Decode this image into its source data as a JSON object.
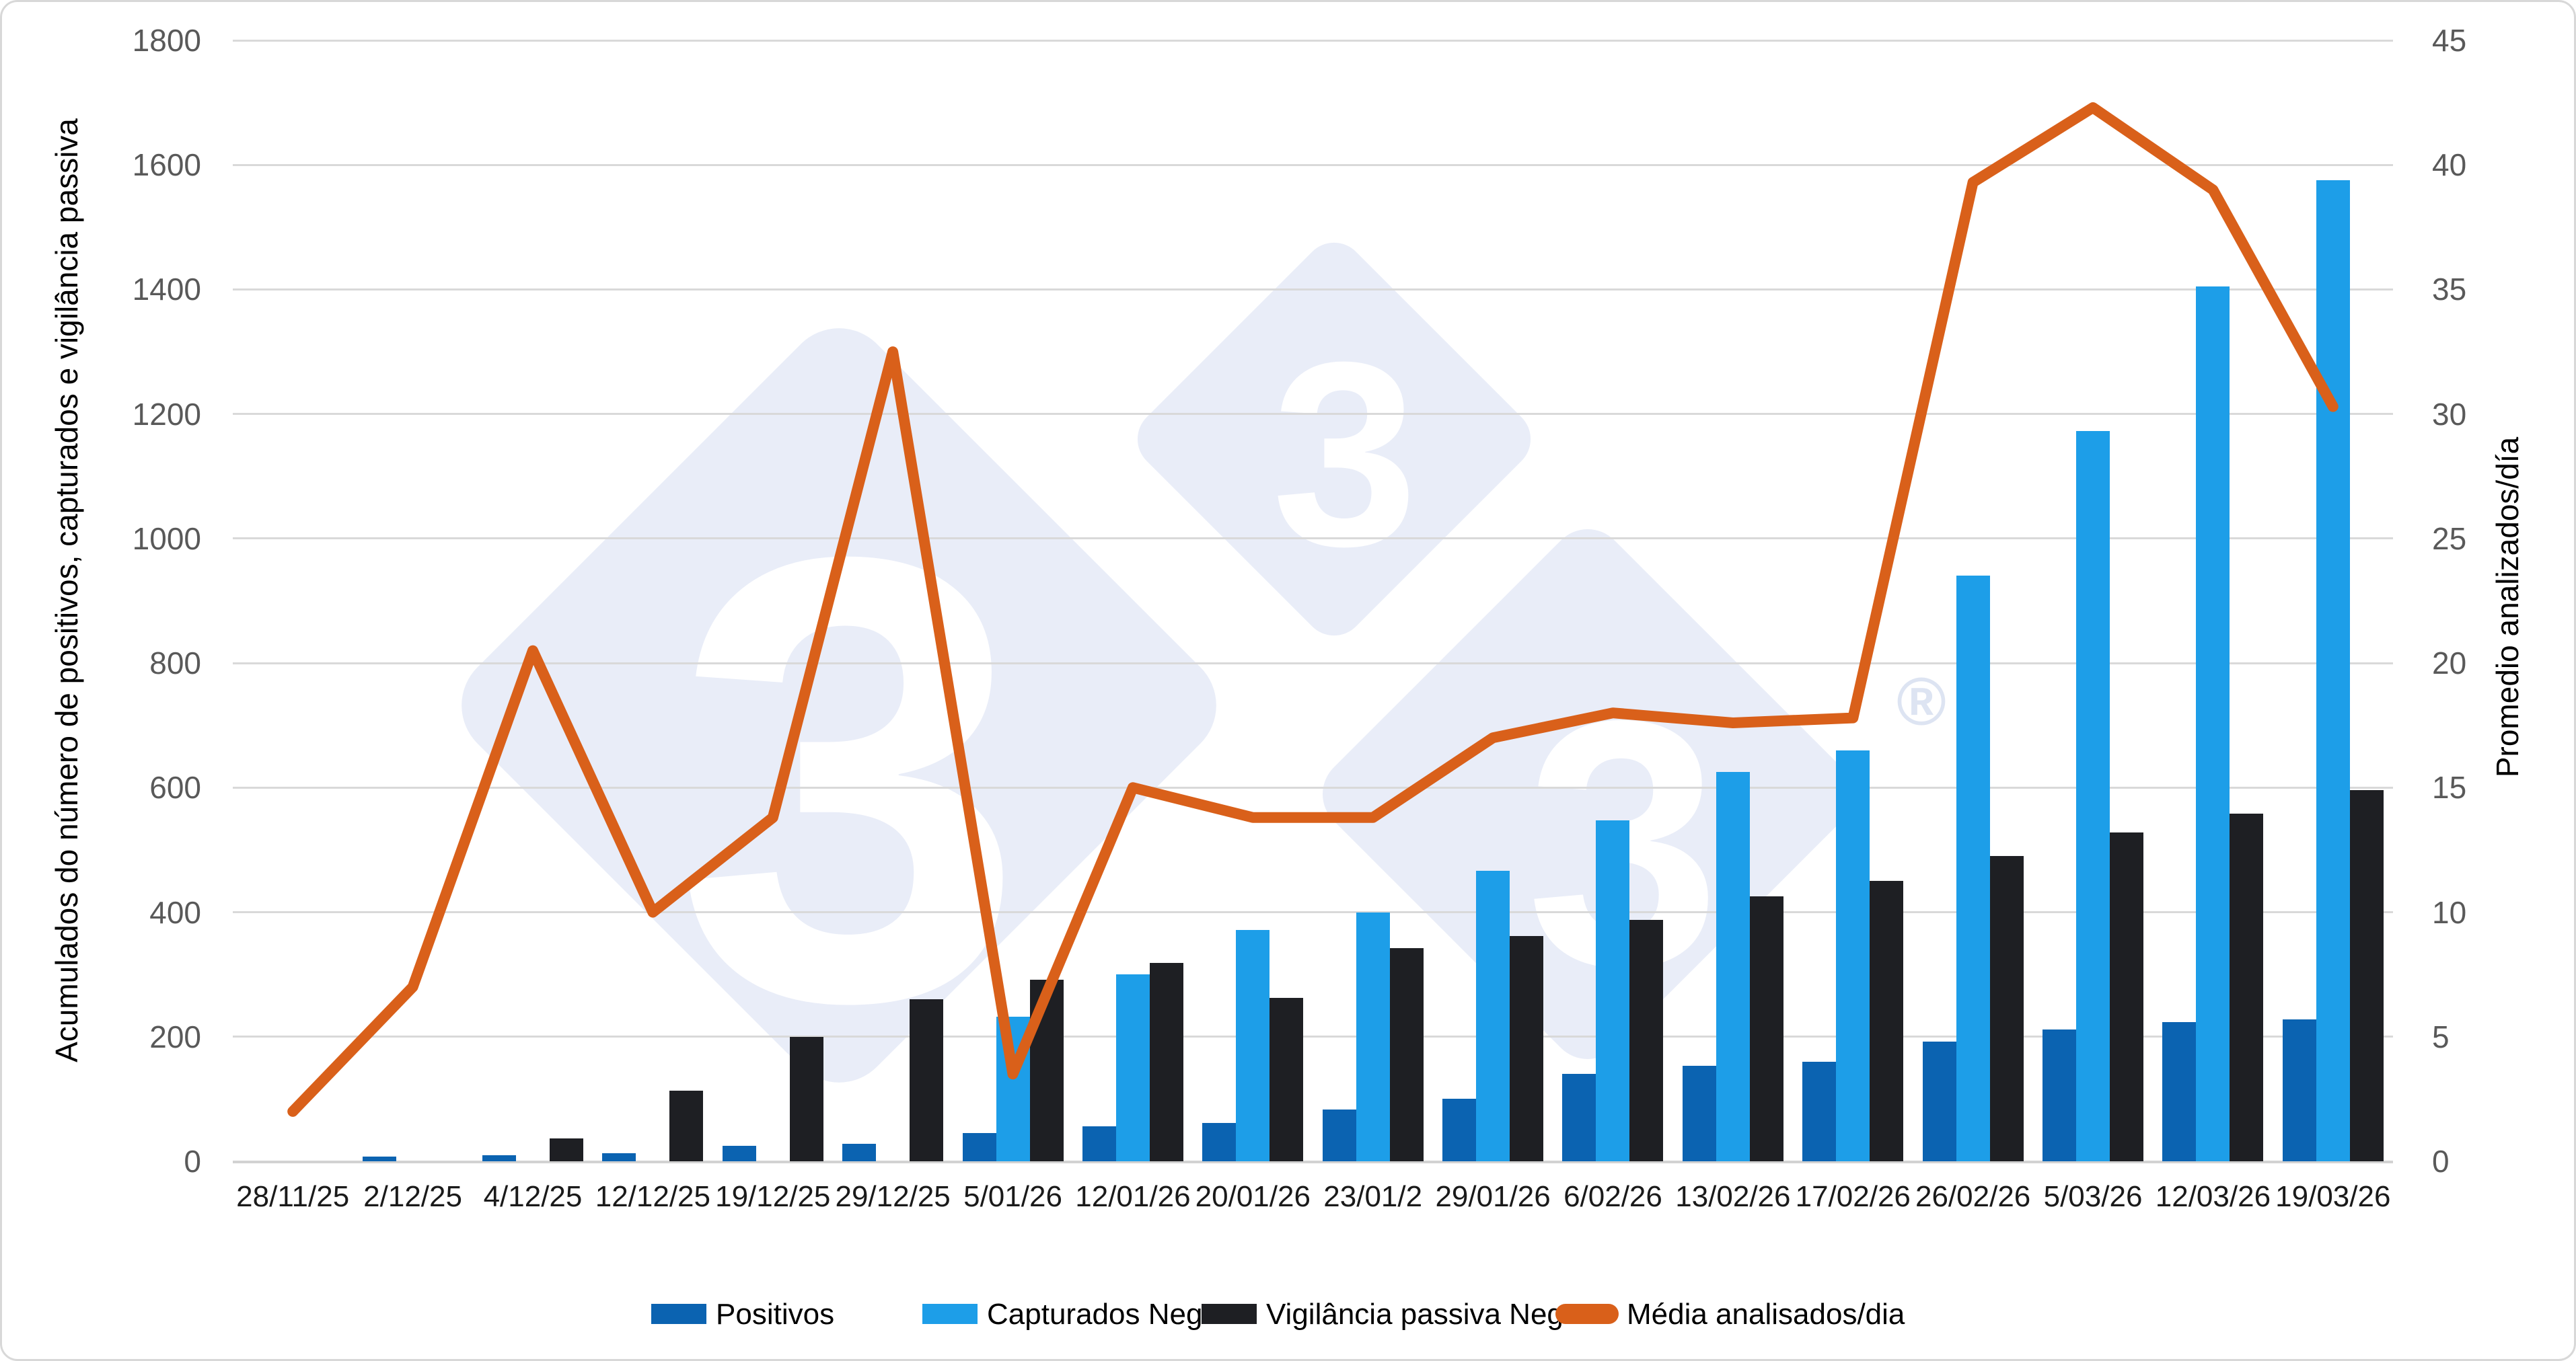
{
  "chart_data": {
    "type": "combo-bar-line",
    "categories": [
      "28/11/25",
      "2/12/25",
      "4/12/25",
      "12/12/25",
      "19/12/25",
      "29/12/25",
      "5/01/26",
      "12/01/26",
      "20/01/26",
      "23/01/2",
      "29/01/26",
      "6/02/26",
      "13/02/26",
      "17/02/26",
      "26/02/26",
      "5/03/26",
      "12/03/26",
      "19/03/26"
    ],
    "series": [
      {
        "name": "Positivos",
        "type": "bar",
        "axis": "left",
        "color": "#0b63b1",
        "values": [
          0,
          8,
          10,
          13,
          25,
          28,
          45,
          56,
          62,
          83,
          100,
          140,
          153,
          160,
          192,
          212,
          224,
          228
        ]
      },
      {
        "name": "Capturados Neg",
        "type": "bar",
        "axis": "left",
        "color": "#1d9ee8",
        "values": [
          0,
          0,
          0,
          0,
          0,
          0,
          232,
          300,
          372,
          400,
          466,
          548,
          625,
          660,
          940,
          1173,
          1405,
          1575
        ]
      },
      {
        "name": "Vigilância passiva Neg",
        "type": "bar",
        "axis": "left",
        "color": "#1e1f23",
        "values": [
          0,
          0,
          37,
          113,
          200,
          260,
          292,
          319,
          262,
          342,
          362,
          388,
          425,
          450,
          490,
          528,
          558,
          596
        ]
      },
      {
        "name": "Média analisados/dia",
        "type": "line",
        "axis": "right",
        "color": "#d9601a",
        "values": [
          2,
          7,
          20.5,
          10,
          13.8,
          32.5,
          3.5,
          15,
          13.8,
          13.8,
          17,
          18,
          17.6,
          17.8,
          39.3,
          42.3,
          39,
          30.3
        ]
      }
    ],
    "left_axis": {
      "title": "Acumulados do número de positivos, capturados e vigilância passiva",
      "min": 0,
      "max": 1800,
      "step": 200,
      "ticks": [
        "0",
        "200",
        "400",
        "600",
        "800",
        "1000",
        "1200",
        "1400",
        "1600",
        "1800"
      ]
    },
    "right_axis": {
      "title": "Promedio analizados/día",
      "min": 0,
      "max": 45,
      "step": 5,
      "ticks": [
        "0",
        "5",
        "10",
        "15",
        "20",
        "25",
        "30",
        "35",
        "40",
        "45"
      ]
    },
    "grid": true,
    "legend_position": "bottom"
  },
  "watermark": {
    "three_large": "3",
    "three_top": "3",
    "three_right": "3",
    "registered": "®"
  },
  "colors": {
    "background": "#ffffff",
    "border": "#d8d8d8",
    "gridline": "#d9d9d9",
    "tick_text": "#595959",
    "label_text": "#1a1a1a",
    "watermark_fill": "#e9edf8",
    "watermark_glyph": "#ffffff"
  }
}
